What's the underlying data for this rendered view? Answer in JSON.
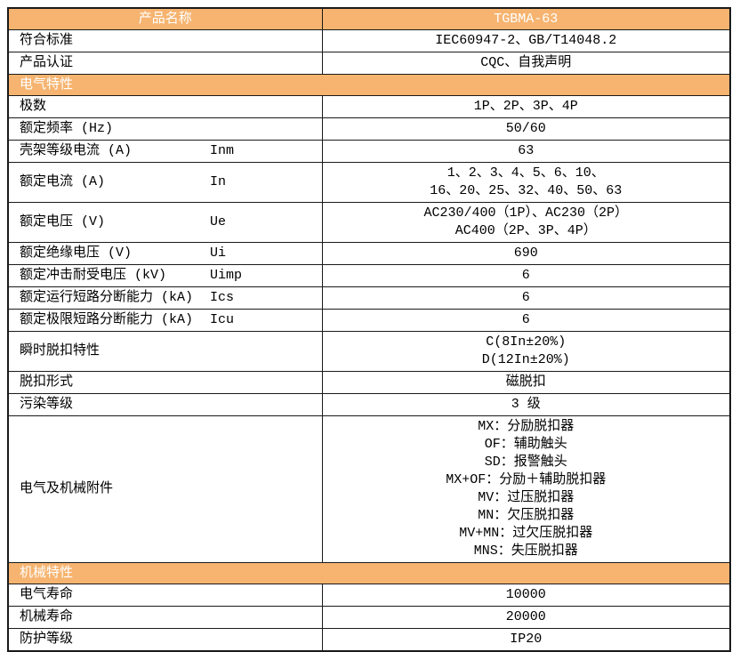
{
  "colors": {
    "band_bg": "#F6B470",
    "band_text": "#FFFFFF",
    "border": "#1A1A1A",
    "text": "#000000",
    "page_bg": "#FFFFFF"
  },
  "table": {
    "header": {
      "name_label": "产品名称",
      "model": "TGBMA-63"
    },
    "rows": [
      {
        "type": "row",
        "label": "符合标准",
        "symbol": "",
        "value": [
          "IEC60947-2、GB/T14048.2"
        ]
      },
      {
        "type": "row",
        "label": "产品认证",
        "symbol": "",
        "value": [
          "CQC、自我声明"
        ]
      },
      {
        "type": "section",
        "label": "电气特性"
      },
      {
        "type": "row",
        "label": "极数",
        "symbol": "",
        "value": [
          "1P、2P、3P、4P"
        ]
      },
      {
        "type": "row",
        "label": "额定频率 (Hz)",
        "symbol": "",
        "value": [
          "50/60"
        ]
      },
      {
        "type": "row",
        "label": "壳架等级电流 (A)",
        "symbol": "Inm",
        "value": [
          "63"
        ]
      },
      {
        "type": "row",
        "label": "额定电流 (A)",
        "symbol": "In",
        "value": [
          "1、2、3、4、5、6、10、",
          "16、20、25、32、40、50、63"
        ]
      },
      {
        "type": "row",
        "label": "额定电压 (V)",
        "symbol": "Ue",
        "value": [
          "AC230/400（1P）、AC230（2P）",
          "AC400（2P、3P、4P）"
        ]
      },
      {
        "type": "row",
        "label": "额定绝缘电压 (V)",
        "symbol": "Ui",
        "value": [
          "690"
        ]
      },
      {
        "type": "row",
        "label": "额定冲击耐受电压 (kV)",
        "symbol": "Uimp",
        "value": [
          "6"
        ]
      },
      {
        "type": "row",
        "label": "额定运行短路分断能力 (kA)",
        "symbol": "Ics",
        "value": [
          "6"
        ]
      },
      {
        "type": "row",
        "label": "额定极限短路分断能力 (kA)",
        "symbol": "Icu",
        "value": [
          "6"
        ]
      },
      {
        "type": "row",
        "label": "瞬时脱扣特性",
        "symbol": "",
        "value": [
          "C(8In±20%)",
          "D(12In±20%)"
        ]
      },
      {
        "type": "row",
        "label": "脱扣形式",
        "symbol": "",
        "value": [
          "磁脱扣"
        ]
      },
      {
        "type": "row",
        "label": "污染等级",
        "symbol": "",
        "value": [
          "3 级"
        ]
      },
      {
        "type": "row",
        "label": "电气及机械附件",
        "symbol": "",
        "value": [
          "MX：分励脱扣器",
          "OF：辅助触头",
          "SD：报警触头",
          "MX+OF：分励＋辅助脱扣器",
          "MV：过压脱扣器",
          "MN：欠压脱扣器",
          "MV+MN：过欠压脱扣器",
          "MNS：失压脱扣器"
        ]
      },
      {
        "type": "section",
        "label": "机械特性"
      },
      {
        "type": "row",
        "label": "电气寿命",
        "symbol": "",
        "value": [
          "10000"
        ]
      },
      {
        "type": "row",
        "label": "机械寿命",
        "symbol": "",
        "value": [
          "20000"
        ]
      },
      {
        "type": "row",
        "label": "防护等级",
        "symbol": "",
        "value": [
          "IP20"
        ]
      }
    ]
  }
}
